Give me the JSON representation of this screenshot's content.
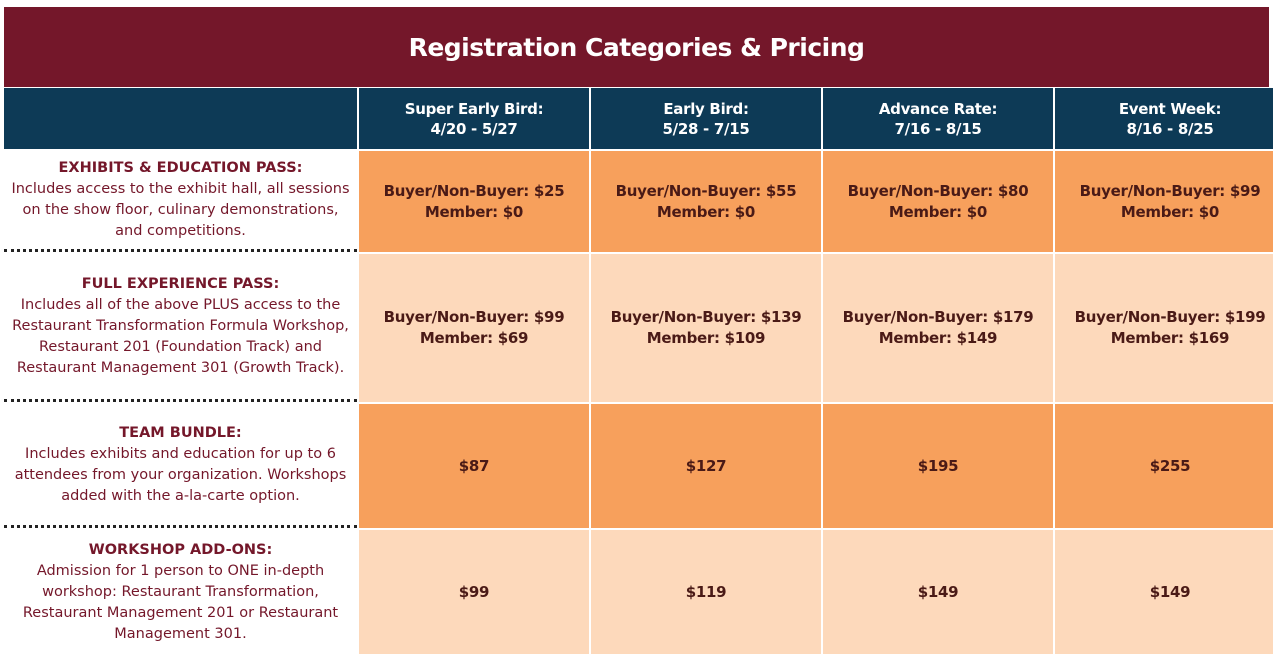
{
  "title": "Registration Categories & Pricing",
  "columns": [
    {
      "name": "Super Early Bird:",
      "dates": "4/20 - 5/27"
    },
    {
      "name": "Early Bird:",
      "dates": "5/28 - 7/15"
    },
    {
      "name": "Advance Rate:",
      "dates": "7/16 - 8/15"
    },
    {
      "name": "Event Week:",
      "dates": "8/16 - 8/25"
    }
  ],
  "rows": [
    {
      "title": "EXHIBITS & EDUCATION PASS:",
      "description": "Includes access to the exhibit hall, all sessions on the show floor, culinary demonstrations, and competitions.",
      "prices": [
        {
          "line1": "Buyer/Non-Buyer: $25",
          "line2": "Member: $0"
        },
        {
          "line1": "Buyer/Non-Buyer: $55",
          "line2": "Member: $0"
        },
        {
          "line1": "Buyer/Non-Buyer: $80",
          "line2": "Member: $0"
        },
        {
          "line1": "Buyer/Non-Buyer: $99",
          "line2": "Member: $0"
        }
      ]
    },
    {
      "title": "FULL EXPERIENCE PASS:",
      "description": "Includes all of the above PLUS access to the Restaurant Transformation Formula Workshop, Restaurant 201 (Foundation Track) and Restaurant Management 301 (Growth Track).",
      "prices": [
        {
          "line1": "Buyer/Non-Buyer: $99",
          "line2": "Member: $69"
        },
        {
          "line1": "Buyer/Non-Buyer: $139",
          "line2": "Member: $109"
        },
        {
          "line1": "Buyer/Non-Buyer: $179",
          "line2": "Member: $149"
        },
        {
          "line1": "Buyer/Non-Buyer: $199",
          "line2": "Member: $169"
        }
      ]
    },
    {
      "title": "TEAM BUNDLE:",
      "description": "Includes exhibits and education for up to 6 attendees from your organization. Workshops added with the a-la-carte option.",
      "prices": [
        {
          "line1": "$87"
        },
        {
          "line1": "$127"
        },
        {
          "line1": "$195"
        },
        {
          "line1": "$255"
        }
      ]
    },
    {
      "title": "WORKSHOP ADD-ONS:",
      "description": "Admission for 1 person to ONE in-depth workshop: Restaurant Transformation, Restaurant Management 201 or Restaurant Management 301.",
      "prices": [
        {
          "line1": "$99"
        },
        {
          "line1": "$119"
        },
        {
          "line1": "$149"
        },
        {
          "line1": "$149"
        }
      ]
    }
  ],
  "colors": {
    "title_bg": "#74172a",
    "header_bg": "#0d3a56",
    "row_dark": "#f7a05c",
    "row_light": "#fdd9bb"
  }
}
